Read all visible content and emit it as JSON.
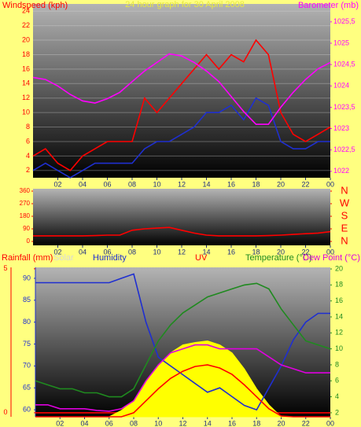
{
  "chart_data": [
    {
      "type": "line",
      "title": "24 hour graph for 30 April 2008",
      "ylabel": "Windspeed (kph)",
      "y2label": "Barometer (mb)",
      "x": [
        0,
        1,
        2,
        3,
        4,
        5,
        6,
        7,
        8,
        9,
        10,
        11,
        12,
        13,
        14,
        15,
        16,
        17,
        18,
        19,
        20,
        21,
        22,
        23,
        24
      ],
      "xlim": [
        0,
        24
      ],
      "xticks": [
        {
          "value": 2,
          "label": "02"
        },
        {
          "value": 4,
          "label": "04"
        },
        {
          "value": 6,
          "label": "06"
        },
        {
          "value": 8,
          "label": "08"
        },
        10,
        12,
        14,
        16,
        18,
        20,
        22,
        {
          "value": 24,
          "label": "00"
        }
      ],
      "ylim": [
        1,
        25
      ],
      "yticks": [
        2,
        4,
        6,
        8,
        10,
        12,
        14,
        16,
        18,
        20,
        22,
        24
      ],
      "y2lim": [
        1021.85,
        1025.92
      ],
      "y2ticks": [
        1022,
        {
          "value": 1022.5,
          "label": "1022,5"
        },
        1023,
        {
          "value": 1023.5,
          "label": "1023,5"
        },
        1024,
        {
          "value": 1024.5,
          "label": "1024,5"
        },
        1025,
        {
          "value": 1025.5,
          "label": "1025,5"
        }
      ],
      "grid": true,
      "series": [
        {
          "color": "#ff0000",
          "values": [
            4,
            5,
            3,
            2,
            4,
            5,
            6,
            6,
            6,
            12,
            10,
            12,
            14,
            16,
            18,
            16,
            18,
            17,
            20,
            18,
            10,
            7,
            6,
            7,
            8
          ]
        },
        {
          "color": "#1f2fd0",
          "values": [
            2,
            3,
            2,
            1,
            2,
            3,
            3,
            3,
            3,
            5,
            6,
            6,
            7,
            8,
            10,
            10,
            11,
            9,
            12,
            11,
            6,
            5,
            5,
            6,
            6
          ]
        },
        {
          "color": "#ff00ff",
          "axis": "y2",
          "values": [
            1024.2,
            1024.15,
            1024.0,
            1023.8,
            1023.65,
            1023.6,
            1023.7,
            1023.85,
            1024.1,
            1024.35,
            1024.55,
            1024.75,
            1024.7,
            1024.55,
            1024.35,
            1024.1,
            1023.75,
            1023.4,
            1023.1,
            1023.1,
            1023.5,
            1023.85,
            1024.15,
            1024.4,
            1024.55
          ]
        }
      ]
    },
    {
      "type": "line",
      "x": [
        0,
        1,
        2,
        3,
        4,
        5,
        6,
        7,
        8,
        9,
        10,
        11,
        12,
        13,
        14,
        15,
        16,
        17,
        18,
        19,
        20,
        21,
        22,
        23,
        24
      ],
      "xlim": [
        0,
        24
      ],
      "xticks": [
        {
          "value": 2,
          "label": "02"
        },
        {
          "value": 4,
          "label": "04"
        },
        {
          "value": 6,
          "label": "06"
        },
        {
          "value": 8,
          "label": "08"
        },
        10,
        12,
        14,
        16,
        18,
        20,
        22,
        {
          "value": 24,
          "label": "00"
        }
      ],
      "ylim": [
        -28,
        377
      ],
      "yticks": [
        0,
        90,
        180,
        270,
        360
      ],
      "y2ticks": [
        {
          "value": 360,
          "label": "N"
        },
        {
          "value": 270,
          "label": "W"
        },
        {
          "value": 180,
          "label": "S"
        },
        {
          "value": 90,
          "label": "E"
        },
        {
          "value": 0,
          "label": "N"
        }
      ],
      "series": [
        {
          "color": "#ff0000",
          "values": [
            40,
            40,
            40,
            40,
            40,
            42,
            45,
            45,
            80,
            90,
            95,
            100,
            80,
            60,
            45,
            40,
            40,
            40,
            40,
            42,
            45,
            50,
            55,
            60,
            70
          ]
        }
      ]
    },
    {
      "type": "line",
      "x": [
        0,
        1,
        2,
        3,
        4,
        5,
        6,
        7,
        8,
        9,
        10,
        11,
        12,
        13,
        14,
        15,
        16,
        17,
        18,
        19,
        20,
        21,
        22,
        23,
        24
      ],
      "xlim": [
        0,
        24
      ],
      "xticks": [
        {
          "value": 2,
          "label": "02"
        },
        {
          "value": 4,
          "label": "04"
        },
        {
          "value": 6,
          "label": "06"
        },
        {
          "value": 8,
          "label": "08"
        },
        10,
        12,
        14,
        16,
        18,
        20,
        22,
        {
          "value": 24,
          "label": "00"
        }
      ],
      "y3lim": [
        -0.14,
        5.05
      ],
      "y3ticks": [
        0,
        5
      ],
      "ylim": [
        58.4,
        92.5
      ],
      "yticks": [
        60,
        65,
        70,
        75,
        80,
        85,
        90
      ],
      "y2lim": [
        1.5,
        20.2
      ],
      "y2ticks": [
        2,
        4,
        6,
        8,
        10,
        12,
        14,
        16,
        18,
        20
      ],
      "series": [
        {
          "name": "Rainfall (mm)",
          "color": "#ff0000",
          "axis": "y3",
          "values": [
            0,
            0,
            0,
            0,
            0,
            0,
            0,
            0,
            0,
            0,
            0,
            0,
            0,
            0,
            0,
            0,
            0,
            0,
            0,
            0,
            0,
            0,
            0,
            0,
            0
          ]
        },
        {
          "name": "Solar",
          "color": "#ffff00",
          "axis": "y2",
          "fill": true,
          "values": [
            1.5,
            1.5,
            1.5,
            1.5,
            1.5,
            1.5,
            1.5,
            2.3,
            3.5,
            6,
            8,
            9.5,
            10.5,
            10.8,
            11,
            10.5,
            9.5,
            7.5,
            5,
            3,
            1.5,
            1.5,
            1.5,
            1.5,
            1.5
          ]
        },
        {
          "name": "Humidity",
          "color": "#1f2fd0",
          "values": [
            89,
            89,
            89,
            89,
            89,
            89,
            89,
            90,
            91,
            80,
            72,
            70,
            68,
            66,
            64,
            65,
            63,
            61,
            60,
            65,
            70,
            76,
            80,
            82,
            82
          ]
        },
        {
          "name": "UV",
          "color": "#ff0000",
          "axis": "y2",
          "values": [
            1.5,
            1.5,
            1.5,
            1.5,
            1.5,
            1.5,
            1.5,
            1.5,
            2,
            3.5,
            5,
            6.3,
            7.2,
            7.8,
            8,
            7.6,
            6.8,
            5.5,
            4,
            2.5,
            1.6,
            1.5,
            1.5,
            1.5,
            1.5
          ]
        },
        {
          "name": "Temperature (°C)",
          "color": "#1f8a1f",
          "axis": "y2",
          "values": [
            6,
            5.5,
            5,
            5,
            4.5,
            4.5,
            4,
            4,
            5,
            8,
            11,
            13,
            14.5,
            15.5,
            16.5,
            17,
            17.5,
            18,
            18.2,
            17.5,
            15,
            13,
            11,
            10.5,
            10
          ]
        },
        {
          "name": "Dew Point (°C)",
          "color": "#e000e0",
          "axis": "y2",
          "values": [
            3,
            3,
            2.5,
            2.5,
            2.5,
            2.3,
            2.2,
            2.5,
            3.5,
            6,
            8,
            9.5,
            10,
            10.5,
            10.5,
            10,
            10,
            10,
            10,
            9,
            8,
            7.5,
            7,
            7,
            7
          ]
        }
      ]
    }
  ]
}
